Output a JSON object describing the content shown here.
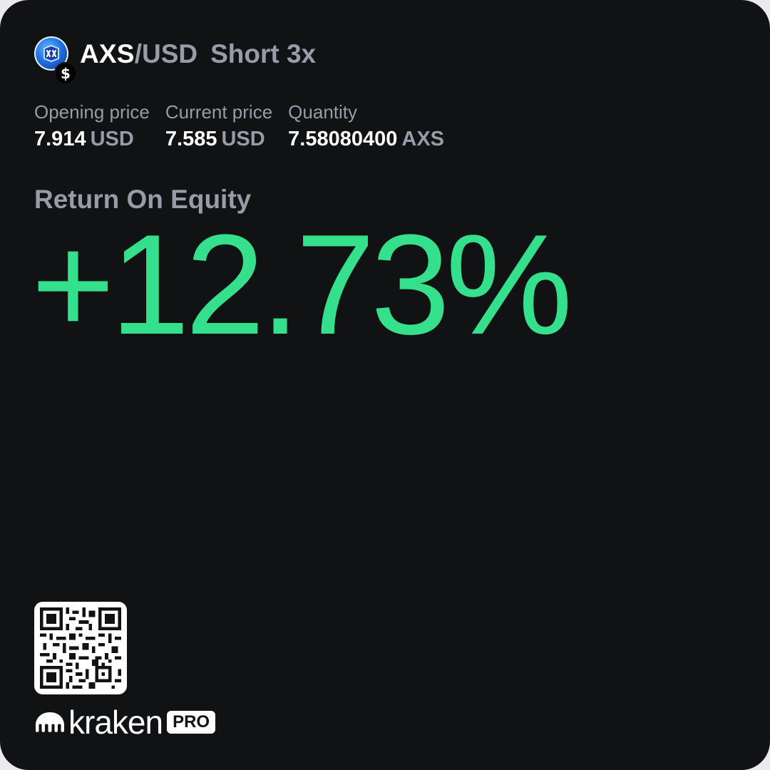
{
  "header": {
    "base_asset": "AXS",
    "quote_asset": "/USD",
    "position": "Short 3x",
    "coin_icon": "axs-coin-icon",
    "badge_icon": "dollar-badge-icon",
    "badge_glyph": "$"
  },
  "stats": [
    {
      "label": "Opening price",
      "value": "7.914",
      "unit": "USD"
    },
    {
      "label": "Current price",
      "value": "7.585",
      "unit": "USD"
    },
    {
      "label": "Quantity",
      "value": "7.58080400",
      "unit": "AXS"
    }
  ],
  "roe": {
    "label": "Return On Equity",
    "value": "+12.73%"
  },
  "footer": {
    "qr_icon": "qr-code-icon",
    "brand_name": "kraken",
    "brand_suffix": "PRO",
    "brand_mark_icon": "kraken-logo-icon"
  },
  "colors": {
    "background": "#111214",
    "primary_text": "#ffffff",
    "secondary_text": "#9a9aa8",
    "positive": "#34e08c"
  }
}
